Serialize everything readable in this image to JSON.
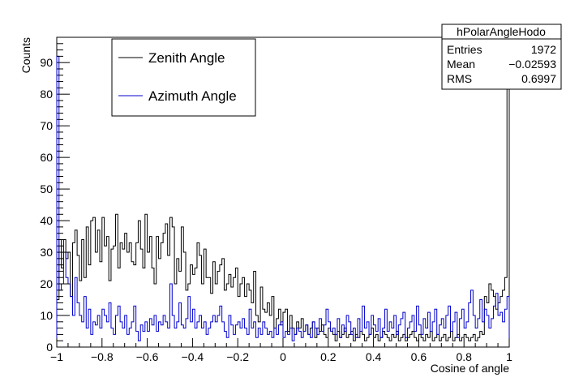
{
  "chart_data": {
    "type": "histogram",
    "xlabel": "Cosine of angle",
    "ylabel": "Counts",
    "xlim": [
      -1,
      1
    ],
    "ylim": [
      0,
      98
    ],
    "x_ticks": [
      -1,
      -0.8,
      -0.6,
      -0.4,
      -0.2,
      0,
      0.2,
      0.4,
      0.6,
      0.8,
      1
    ],
    "x_tick_labels": [
      "−1",
      "−0.8",
      "−0.6",
      "−0.4",
      "−0.2",
      "0",
      "0.2",
      "0.4",
      "0.6",
      "0.8",
      "1"
    ],
    "y_ticks": [
      0,
      10,
      20,
      30,
      40,
      50,
      60,
      70,
      80,
      90
    ],
    "y_tick_labels": [
      "0",
      "10",
      "20",
      "30",
      "40",
      "50",
      "60",
      "70",
      "80",
      "90"
    ],
    "bins": 200,
    "legend": {
      "placement": "top-left"
    },
    "series": [
      {
        "name": "Zenith Angle",
        "color": "#000000",
        "values": [
          15,
          34,
          25,
          34,
          28,
          30,
          16,
          33,
          37,
          29,
          21,
          34,
          22,
          38,
          26,
          40,
          41,
          30,
          37,
          27,
          41,
          32,
          35,
          21,
          31,
          32,
          42,
          25,
          33,
          31,
          36,
          30,
          33,
          27,
          26,
          33,
          40,
          31,
          25,
          42,
          30,
          35,
          25,
          20,
          35,
          28,
          33,
          36,
          39,
          29,
          41,
          38,
          20,
          28,
          24,
          38,
          30,
          18,
          20,
          26,
          23,
          25,
          33,
          29,
          20,
          31,
          22,
          22,
          17,
          27,
          20,
          24,
          26,
          28,
          18,
          20,
          23,
          19,
          22,
          25,
          16,
          20,
          22,
          16,
          20,
          18,
          14,
          24,
          10,
          8,
          19,
          12,
          11,
          14,
          10,
          16,
          6,
          9,
          12,
          7,
          11,
          12,
          5,
          10,
          6,
          4,
          8,
          6,
          9,
          5,
          7,
          4,
          6,
          8,
          3,
          6,
          5,
          7,
          4,
          3,
          6,
          5,
          4,
          2,
          5,
          3,
          4,
          6,
          3,
          4,
          5,
          2,
          4,
          3,
          5,
          4,
          2,
          3,
          4,
          6,
          3,
          4,
          2,
          3,
          5,
          4,
          3,
          2,
          4,
          3,
          5,
          2,
          3,
          4,
          2,
          3,
          4,
          5,
          3,
          2,
          4,
          3,
          2,
          4,
          3,
          5,
          2,
          3,
          4,
          2,
          3,
          4,
          2,
          3,
          5,
          2,
          3,
          4,
          2,
          3,
          4,
          3,
          2,
          3,
          4,
          2,
          3,
          5,
          4,
          16,
          14,
          20,
          18,
          16,
          12,
          14,
          16,
          18,
          22,
          95
        ]
      },
      {
        "name": "Azimuth Angle",
        "color": "#0000cc",
        "values": [
          92,
          18,
          20,
          30,
          22,
          20,
          16,
          10,
          22,
          14,
          10,
          8,
          16,
          6,
          12,
          4,
          8,
          7,
          10,
          6,
          12,
          10,
          8,
          14,
          6,
          4,
          10,
          13,
          8,
          6,
          10,
          4,
          6,
          8,
          13,
          5,
          2,
          7,
          5,
          8,
          5,
          9,
          7,
          10,
          5,
          8,
          7,
          10,
          8,
          6,
          20,
          10,
          6,
          8,
          14,
          7,
          6,
          9,
          16,
          8,
          12,
          6,
          8,
          10,
          6,
          8,
          4,
          6,
          8,
          10,
          8,
          10,
          13,
          8,
          5,
          3,
          10,
          7,
          4,
          7,
          8,
          6,
          9,
          6,
          4,
          12,
          6,
          8,
          3,
          6,
          4,
          8,
          6,
          4,
          5,
          3,
          6,
          4,
          7,
          8,
          3,
          5,
          4,
          6,
          2,
          4,
          6,
          5,
          3,
          5,
          7,
          4,
          3,
          8,
          6,
          4,
          9,
          5,
          7,
          12,
          8,
          5,
          6,
          4,
          9,
          3,
          7,
          5,
          10,
          8,
          4,
          6,
          3,
          9,
          5,
          13,
          6,
          8,
          4,
          10,
          7,
          5,
          9,
          3,
          6,
          12,
          5,
          8,
          6,
          10,
          4,
          7,
          9,
          11,
          3,
          6,
          8,
          10,
          5,
          13,
          7,
          4,
          9,
          6,
          11,
          5,
          8,
          12,
          4,
          7,
          9,
          6,
          10,
          13,
          5,
          8,
          11,
          3,
          9,
          12,
          6,
          8,
          14,
          18,
          10,
          6,
          9,
          15,
          8,
          12,
          10,
          6,
          9,
          13,
          17,
          10,
          11,
          8,
          12,
          16
        ]
      }
    ],
    "stats": {
      "title": "hPolarAngleHodo",
      "rows": [
        {
          "label": "Entries",
          "value": "1972"
        },
        {
          "label": "Mean",
          "value": "−0.02593"
        },
        {
          "label": "RMS",
          "value": "0.6997"
        }
      ]
    }
  }
}
